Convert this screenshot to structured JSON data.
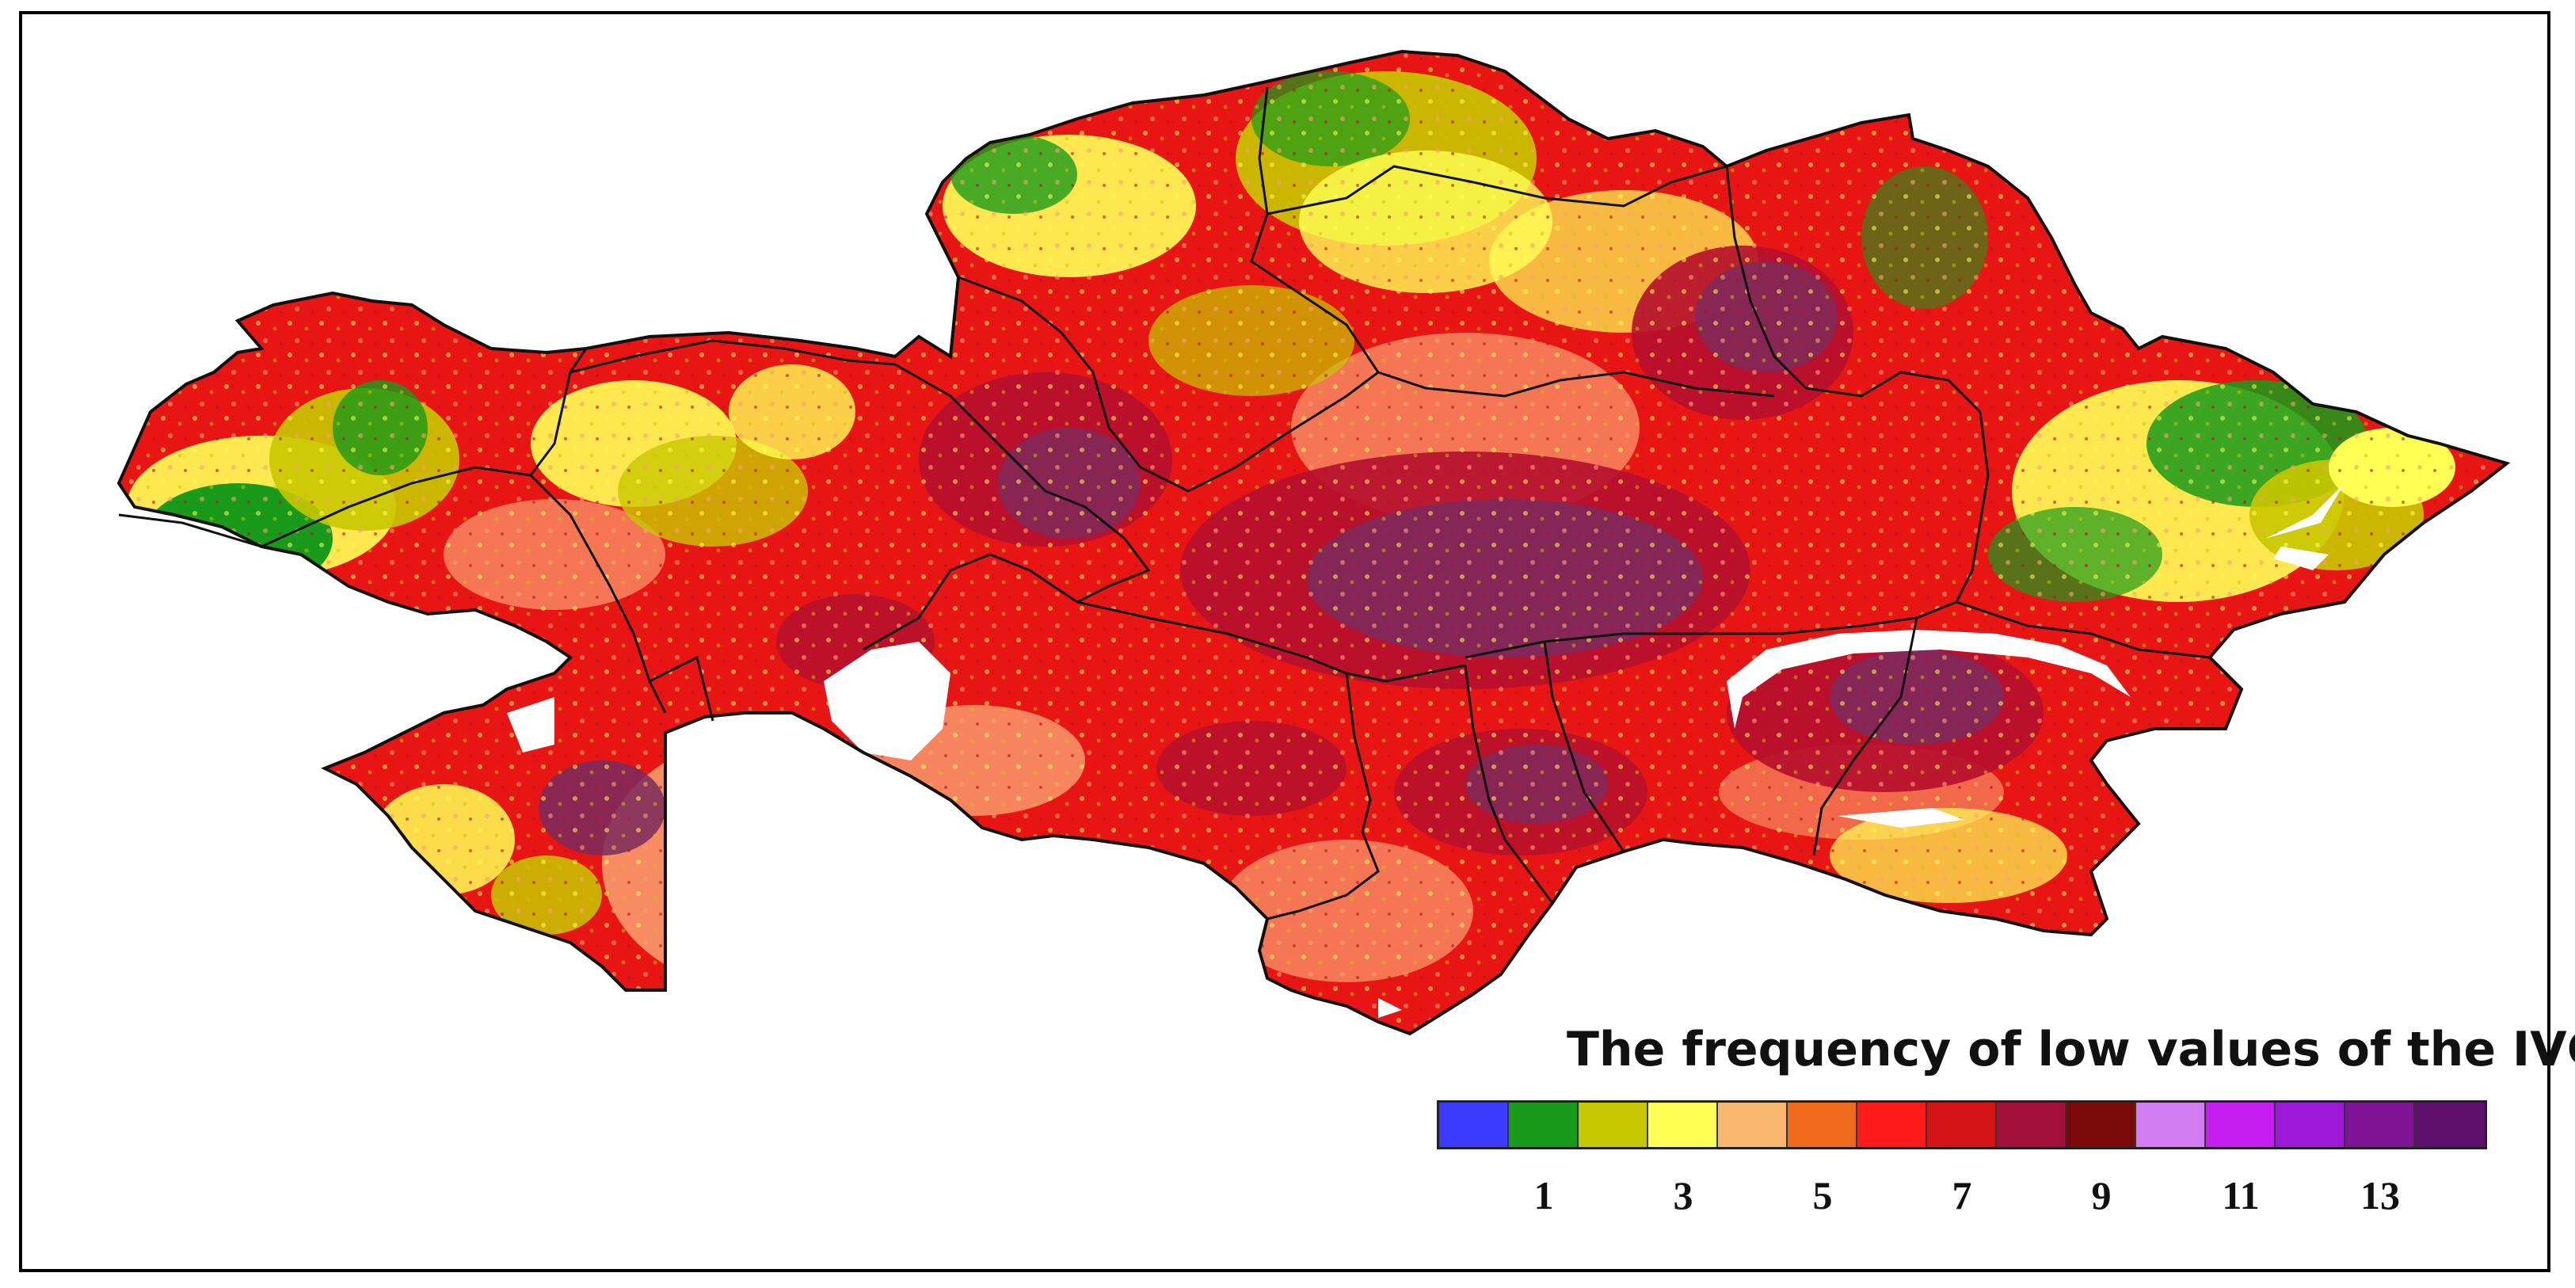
{
  "legend": {
    "title": "The frequency of low values of the IVCI",
    "classes": [
      {
        "color": "#3b3bff"
      },
      {
        "color": "#1a9a1a"
      },
      {
        "color": "#c8c800"
      },
      {
        "color": "#ffff55"
      },
      {
        "color": "#f9b870"
      },
      {
        "color": "#ef6a1a"
      },
      {
        "color": "#ff1a1a"
      },
      {
        "color": "#d51515"
      },
      {
        "color": "#a3103a"
      },
      {
        "color": "#7a0a0a"
      },
      {
        "color": "#d27cf2"
      },
      {
        "color": "#c41ef0"
      },
      {
        "color": "#9f1ad8"
      },
      {
        "color": "#7f1494"
      },
      {
        "color": "#5f0f6e"
      }
    ],
    "labels": [
      {
        "text": "1",
        "class_index": 1
      },
      {
        "text": "3",
        "class_index": 3
      },
      {
        "text": "5",
        "class_index": 5
      },
      {
        "text": "7",
        "class_index": 7
      },
      {
        "text": "9",
        "class_index": 9
      },
      {
        "text": "11",
        "class_index": 11
      },
      {
        "text": "13",
        "class_index": 13
      }
    ]
  },
  "map_palette": {
    "green": "#1a9a1a",
    "olive": "#c8c800",
    "yellow": "#ffff55",
    "peach": "#f9a070",
    "orange": "#ef6a1a",
    "red": "#e81515",
    "darkred": "#b5102e",
    "purple": "#7a2a5e",
    "water": "#ffffff",
    "border": "#111111"
  }
}
